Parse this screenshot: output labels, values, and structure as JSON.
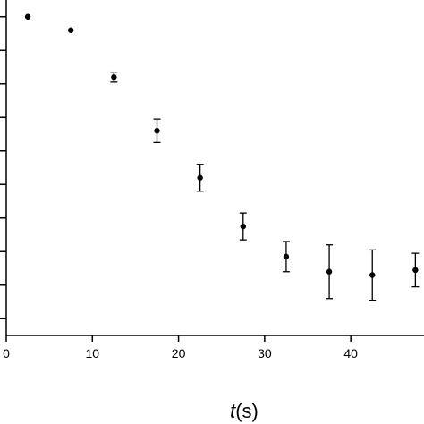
{
  "chart_data": {
    "type": "scatter",
    "title": "",
    "xlabel": {
      "italic": "t",
      "rest": "(s)"
    },
    "ylabel": "",
    "xlim": [
      0,
      48.5
    ],
    "ylim": [
      0,
      1
    ],
    "grid": false,
    "x_ticks": [
      0,
      10,
      20,
      30,
      40
    ],
    "x_tick_labels": [
      "0",
      "10",
      "20",
      "30",
      "40"
    ],
    "y_ticks": [
      0.05,
      0.15,
      0.25,
      0.35,
      0.45,
      0.55,
      0.65,
      0.75,
      0.85,
      0.95
    ],
    "series": [
      {
        "x": [
          2.5,
          7.5,
          12.5,
          17.5,
          22.5,
          27.5,
          32.5,
          37.5,
          42.5,
          47.5
        ],
        "y": [
          0.95,
          0.91,
          0.77,
          0.61,
          0.47,
          0.325,
          0.235,
          0.19,
          0.18,
          0.195
        ],
        "err": [
          0.0,
          0.0,
          0.015,
          0.035,
          0.04,
          0.04,
          0.045,
          0.08,
          0.075,
          0.05
        ]
      }
    ]
  }
}
